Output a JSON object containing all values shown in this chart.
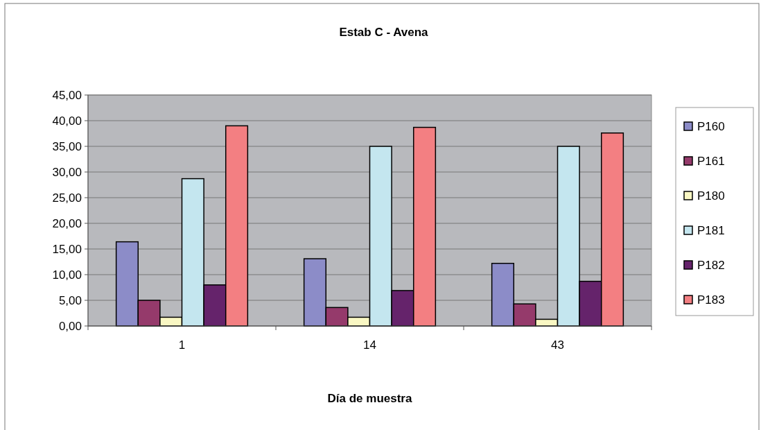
{
  "chart_data": {
    "type": "bar",
    "title": "Estab C  - Avena",
    "xlabel": "Día de muestra",
    "categories": [
      "1",
      "14",
      "43"
    ],
    "series": [
      {
        "name": "P160",
        "color": "#8c8cc8",
        "values": [
          16.4,
          13.1,
          12.2
        ]
      },
      {
        "name": "P161",
        "color": "#953a6b",
        "values": [
          5.0,
          3.6,
          4.3
        ]
      },
      {
        "name": "P180",
        "color": "#f9f7c3",
        "values": [
          1.7,
          1.7,
          1.3
        ]
      },
      {
        "name": "P181",
        "color": "#c4e6ef",
        "values": [
          28.7,
          35.0,
          35.0
        ]
      },
      {
        "name": "P182",
        "color": "#65236b",
        "values": [
          8.0,
          6.9,
          8.7
        ]
      },
      {
        "name": "P183",
        "color": "#f37f82",
        "values": [
          39.0,
          38.7,
          37.6
        ]
      }
    ],
    "ylim": [
      0,
      45
    ],
    "yticks": [
      {
        "value": 0,
        "label": "0,00"
      },
      {
        "value": 5,
        "label": "5,00"
      },
      {
        "value": 10,
        "label": "10,00"
      },
      {
        "value": 15,
        "label": "15,00"
      },
      {
        "value": 20,
        "label": "20,00"
      },
      {
        "value": 25,
        "label": "25,00"
      },
      {
        "value": 30,
        "label": "30,00"
      },
      {
        "value": 35,
        "label": "35,00"
      },
      {
        "value": 40,
        "label": "40,00"
      },
      {
        "value": 45,
        "label": "45,00"
      }
    ],
    "grid": "y",
    "legend": "right"
  }
}
